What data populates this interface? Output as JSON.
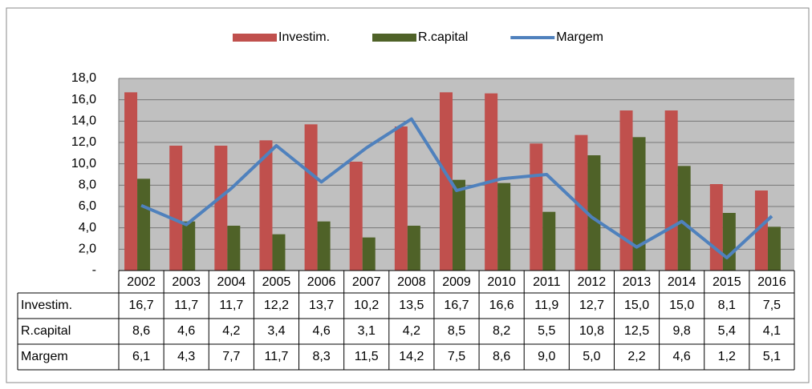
{
  "chart_data": {
    "type": "bar_line_table",
    "categories": [
      "2002",
      "2003",
      "2004",
      "2005",
      "2006",
      "2007",
      "2008",
      "2009",
      "2010",
      "2011",
      "2012",
      "2013",
      "2014",
      "2015",
      "2016"
    ],
    "series": [
      {
        "name": "Investim.",
        "color": "#c0504d",
        "kind": "bar",
        "values": [
          16.7,
          11.7,
          11.7,
          12.2,
          13.7,
          10.2,
          13.5,
          16.7,
          16.6,
          11.9,
          12.7,
          15.0,
          15.0,
          8.1,
          7.5
        ],
        "value_labels": [
          "16,7",
          "11,7",
          "11,7",
          "12,2",
          "13,7",
          "10,2",
          "13,5",
          "16,7",
          "16,6",
          "11,9",
          "12,7",
          "15,0",
          "15,0",
          "8,1",
          "7,5"
        ]
      },
      {
        "name": "R.capital",
        "color": "#4f6228",
        "kind": "bar",
        "values": [
          8.6,
          4.6,
          4.2,
          3.4,
          4.6,
          3.1,
          4.2,
          8.5,
          8.2,
          5.5,
          10.8,
          12.5,
          9.8,
          5.4,
          4.1
        ],
        "value_labels": [
          "8,6",
          "4,6",
          "4,2",
          "3,4",
          "4,6",
          "3,1",
          "4,2",
          "8,5",
          "8,2",
          "5,5",
          "10,8",
          "12,5",
          "9,8",
          "5,4",
          "4,1"
        ]
      },
      {
        "name": "Margem",
        "color": "#4f81bd",
        "kind": "line",
        "values": [
          6.1,
          4.3,
          7.7,
          11.7,
          8.3,
          11.5,
          14.2,
          7.5,
          8.6,
          9.0,
          5.0,
          2.2,
          4.6,
          1.2,
          5.1
        ],
        "value_labels": [
          "6,1",
          "4,3",
          "7,7",
          "11,7",
          "8,3",
          "11,5",
          "14,2",
          "7,5",
          "8,6",
          "9,0",
          "5,0",
          "2,2",
          "4,6",
          "1,2",
          "5,1"
        ]
      }
    ],
    "ylim": [
      0,
      18
    ],
    "yticks": [
      {
        "value": 0,
        "label": "-"
      },
      {
        "value": 2,
        "label": "2,0"
      },
      {
        "value": 4,
        "label": "4,0"
      },
      {
        "value": 6,
        "label": "6,0"
      },
      {
        "value": 8,
        "label": "8,0"
      },
      {
        "value": 10,
        "label": "10,0"
      },
      {
        "value": 12,
        "label": "12,0"
      },
      {
        "value": 14,
        "label": "14,0"
      },
      {
        "value": 16,
        "label": "16,0"
      },
      {
        "value": 18,
        "label": "18,0"
      }
    ],
    "grid": true,
    "legend": "top",
    "plot_background": "#c0c0c0"
  }
}
